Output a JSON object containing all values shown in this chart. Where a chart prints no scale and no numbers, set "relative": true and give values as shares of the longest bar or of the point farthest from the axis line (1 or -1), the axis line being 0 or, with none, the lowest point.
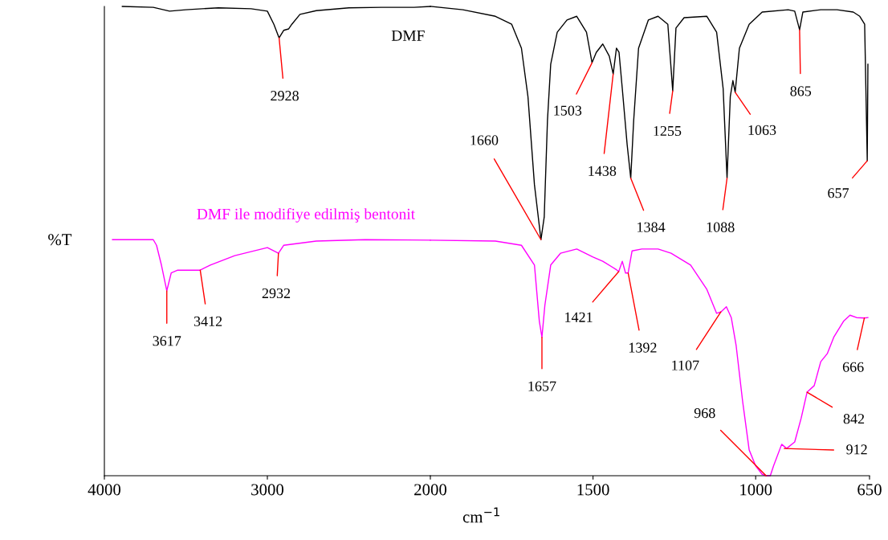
{
  "chart_data": [
    {
      "type": "line",
      "relative": true,
      "ylabel": "%T",
      "xlim": [
        4000,
        2000
      ],
      "xticks": [
        4000,
        3000,
        2000
      ],
      "series": [
        {
          "name": "DMF",
          "color": "#000000",
          "x": [
            3890,
            3700,
            3600,
            3500,
            3300,
            3100,
            3000,
            2960,
            2928,
            2900,
            2870,
            2850,
            2800,
            2700,
            2500,
            2300,
            2100,
            2000
          ],
          "values": [
            1.0,
            0.998,
            0.99,
            0.993,
            0.997,
            0.995,
            0.99,
            0.962,
            0.933,
            0.949,
            0.952,
            0.962,
            0.983,
            0.991,
            0.997,
            0.998,
            0.998,
            1.0
          ]
        },
        {
          "name": "DMF ile modifiye edilmiş bentonit",
          "color": "#ff00ff",
          "x": [
            3950,
            3700,
            3680,
            3650,
            3617,
            3590,
            3550,
            3412,
            3350,
            3200,
            3000,
            2932,
            2900,
            2700,
            2400,
            2000
          ],
          "values": [
            0.503,
            0.503,
            0.491,
            0.449,
            0.394,
            0.432,
            0.438,
            0.438,
            0.449,
            0.469,
            0.486,
            0.474,
            0.491,
            0.5,
            0.503,
            0.502
          ]
        }
      ],
      "annotations": [
        {
          "text": "2928",
          "x": 2928,
          "y": 0.933
        },
        {
          "text": "3617",
          "x": 3617,
          "y": 0.394
        },
        {
          "text": "3412",
          "x": 3412,
          "y": 0.438
        },
        {
          "text": "2932",
          "x": 2932,
          "y": 0.474
        }
      ]
    },
    {
      "type": "line",
      "relative": true,
      "xlabel": "cm$^{−1}$",
      "xlim": [
        2000,
        650
      ],
      "xticks": [
        1500,
        1000,
        650
      ],
      "series": [
        {
          "color": "#000000",
          "x": [
            2000,
            1900,
            1800,
            1750,
            1720,
            1700,
            1680,
            1660,
            1650,
            1640,
            1630,
            1610,
            1580,
            1550,
            1520,
            1503,
            1490,
            1470,
            1450,
            1438,
            1428,
            1420,
            1410,
            1395,
            1384,
            1375,
            1360,
            1330,
            1300,
            1270,
            1255,
            1245,
            1220,
            1150,
            1120,
            1100,
            1088,
            1078,
            1070,
            1063,
            1050,
            1020,
            980,
            900,
            880,
            865,
            855,
            800,
            750,
            700,
            680,
            665,
            657,
            655
          ],
          "values": [
            1.0,
            0.993,
            0.979,
            0.962,
            0.911,
            0.808,
            0.62,
            0.503,
            0.551,
            0.757,
            0.877,
            0.945,
            0.971,
            0.979,
            0.945,
            0.88,
            0.902,
            0.92,
            0.894,
            0.856,
            0.911,
            0.902,
            0.825,
            0.705,
            0.634,
            0.757,
            0.911,
            0.971,
            0.979,
            0.962,
            0.82,
            0.954,
            0.976,
            0.979,
            0.945,
            0.825,
            0.634,
            0.808,
            0.842,
            0.817,
            0.911,
            0.962,
            0.988,
            0.993,
            0.99,
            0.95,
            0.988,
            0.993,
            0.993,
            0.988,
            0.979,
            0.962,
            0.671,
            0.877
          ]
        },
        {
          "color": "#ff00ff",
          "x": [
            2000,
            1800,
            1720,
            1680,
            1665,
            1657,
            1648,
            1630,
            1600,
            1550,
            1500,
            1470,
            1430,
            1421,
            1410,
            1400,
            1392,
            1380,
            1350,
            1300,
            1260,
            1200,
            1150,
            1120,
            1107,
            1090,
            1075,
            1060,
            1040,
            1020,
            1000,
            980,
            968,
            955,
            945,
            920,
            905,
            880,
            860,
            842,
            820,
            800,
            780,
            760,
            730,
            710,
            690,
            666,
            655
          ],
          "values": [
            0.502,
            0.5,
            0.491,
            0.449,
            0.329,
            0.295,
            0.363,
            0.449,
            0.474,
            0.483,
            0.466,
            0.457,
            0.44,
            0.435,
            0.457,
            0.432,
            0.432,
            0.479,
            0.483,
            0.483,
            0.474,
            0.449,
            0.397,
            0.346,
            0.349,
            0.36,
            0.337,
            0.277,
            0.158,
            0.055,
            0.021,
            0.003,
            0,
            0,
            0.021,
            0.067,
            0.058,
            0.072,
            0.123,
            0.178,
            0.192,
            0.243,
            0.26,
            0.295,
            0.329,
            0.342,
            0.337,
            0.336,
            0.337
          ]
        }
      ],
      "annotations": [
        {
          "text": "1660",
          "x": 1660,
          "y": 0.503
        },
        {
          "text": "1503",
          "x": 1503,
          "y": 0.88
        },
        {
          "text": "1438",
          "x": 1438,
          "y": 0.856
        },
        {
          "text": "1384",
          "x": 1384,
          "y": 0.634
        },
        {
          "text": "1255",
          "x": 1255,
          "y": 0.82
        },
        {
          "text": "1088",
          "x": 1088,
          "y": 0.634
        },
        {
          "text": "1063",
          "x": 1063,
          "y": 0.817
        },
        {
          "text": "865",
          "x": 865,
          "y": 0.95
        },
        {
          "text": "657",
          "x": 657,
          "y": 0.671
        },
        {
          "text": "1657",
          "x": 1657,
          "y": 0.295
        },
        {
          "text": "1421",
          "x": 1421,
          "y": 0.435
        },
        {
          "text": "1392",
          "x": 1392,
          "y": 0.432
        },
        {
          "text": "1107",
          "x": 1107,
          "y": 0.349
        },
        {
          "text": "968",
          "x": 968,
          "y": 0
        },
        {
          "text": "912",
          "x": 912,
          "y": 0.058
        },
        {
          "text": "842",
          "x": 842,
          "y": 0.178
        },
        {
          "text": "666",
          "x": 666,
          "y": 0.336
        }
      ]
    }
  ]
}
